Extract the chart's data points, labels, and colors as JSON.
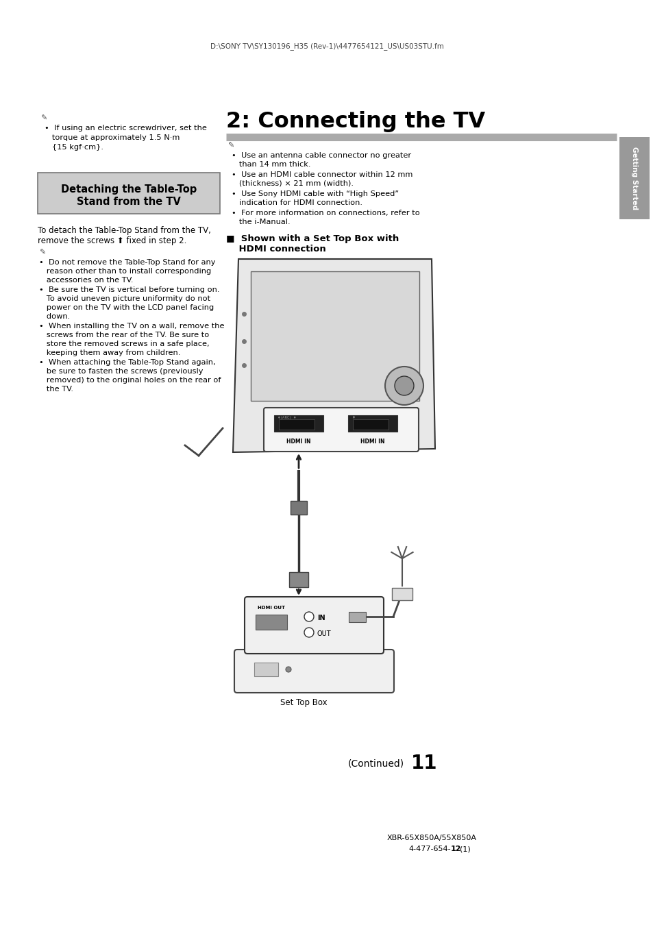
{
  "header_text": "D:\\SONY TV\\SY130196_H35 (Rev-1)\\4477654121_US\\US03STU.fm",
  "section_title": "2: Connecting the TV",
  "section_box_line1": "Detaching the Table-Top",
  "section_box_line2": "Stand from the TV",
  "left_note1": [
    "•  If using an electric screwdriver, set the",
    "   torque at approximately 1.5 N·m",
    "   {15 kgf·cm}."
  ],
  "detach_intro": [
    "To detach the Table-Top Stand from the TV,",
    "remove the screws ⬆ fixed in step 2."
  ],
  "detach_bullets": [
    [
      "•  Do not remove the Table-Top Stand for any",
      "   reason other than to install corresponding",
      "   accessories on the TV."
    ],
    [
      "•  Be sure the TV is vertical before turning on.",
      "   To avoid uneven picture uniformity do not",
      "   power on the TV with the LCD panel facing",
      "   down."
    ],
    [
      "•  When installing the TV on a wall, remove the",
      "   screws from the rear of the TV. Be sure to",
      "   store the removed screws in a safe place,",
      "   keeping them away from children."
    ],
    [
      "•  When attaching the Table-Top Stand again,",
      "   be sure to fasten the screws (previously",
      "   removed) to the original holes on the rear of",
      "   the TV."
    ]
  ],
  "right_bullets": [
    [
      "•  Use an antenna cable connector no greater",
      "   than 14 mm thick."
    ],
    [
      "•  Use an HDMI cable connector within 12 mm",
      "   (thickness) × 21 mm (width)."
    ],
    [
      "•  Use Sony HDMI cable with “High Speed”",
      "   indication for HDMI connection."
    ],
    [
      "•  For more information on connections, refer to",
      "   the i-Manual."
    ]
  ],
  "diag_cap1": "■  Shown with a Set Top Box with",
  "diag_cap2": "    HDMI connection",
  "stb_label": "Set Top Box",
  "continued": "(Continued)",
  "page_num": "11",
  "footer1": "XBR-65X850A/55X850A",
  "footer2_plain": "4-477-654-",
  "footer2_bold": "12",
  "footer2_end": "(1)",
  "sidebar": "Getting Started",
  "bg": "#ffffff",
  "box_bg": "#cccccc",
  "sidebar_bg": "#999999"
}
